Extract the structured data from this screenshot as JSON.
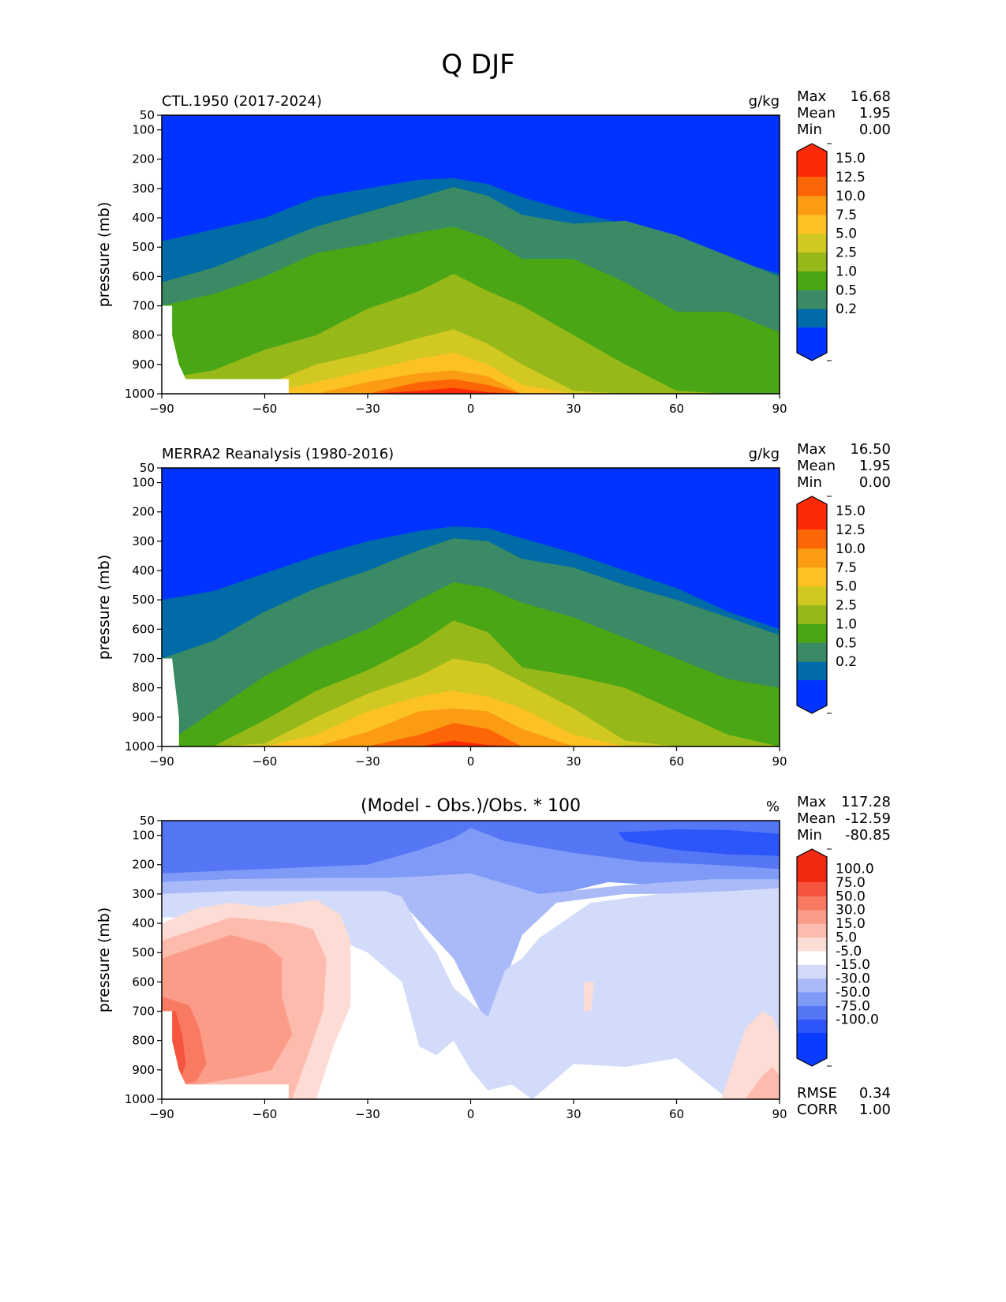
{
  "figure_title": "Q DJF",
  "chart_data": [
    {
      "type": "heatmap",
      "title": "CTL.1950 (2017-2024)",
      "units": "g/kg",
      "xlabel": "",
      "ylabel": "pressure (mb)",
      "xlim": [
        -90,
        90
      ],
      "ylim": [
        1000,
        50
      ],
      "xticks": [
        "−90",
        "−60",
        "−30",
        "0",
        "30",
        "60",
        "90"
      ],
      "yticks": [
        "50",
        "100",
        "200",
        "300",
        "400",
        "500",
        "600",
        "700",
        "800",
        "900",
        "1000"
      ],
      "stats": [
        {
          "label": "Max",
          "value": "16.68"
        },
        {
          "label": "Mean",
          "value": "1.95"
        },
        {
          "label": "Min",
          "value": "0.00"
        }
      ],
      "levels": [
        0.2,
        0.5,
        1.0,
        2.5,
        5.0,
        7.5,
        10.0,
        12.5,
        15.0
      ],
      "colorbar_ticks": [
        "0.2",
        "0.5",
        "1.0",
        "2.5",
        "5.0",
        "7.5",
        "10.0",
        "12.5",
        "15.0"
      ],
      "colors": [
        "#0033ff",
        "#006ba6",
        "#3a8a66",
        "#4aa614",
        "#96b818",
        "#d2c822",
        "#fcc224",
        "#fc9c12",
        "#fc6606",
        "#fc2a06"
      ],
      "boundary_lat": [
        -90,
        -75,
        -60,
        -45,
        -30,
        -15,
        -5,
        5,
        15,
        30,
        45,
        60,
        75,
        90
      ],
      "boundary_pressure": [
        [
          480,
          440,
          400,
          330,
          300,
          270,
          265,
          285,
          330,
          380,
          420,
          480,
          540,
          590
        ],
        [
          620,
          570,
          500,
          430,
          380,
          330,
          295,
          325,
          390,
          420,
          410,
          460,
          530,
          600
        ],
        [
          700,
          660,
          600,
          520,
          490,
          450,
          430,
          470,
          540,
          540,
          620,
          720,
          720,
          790
        ],
        [
          950,
          920,
          850,
          800,
          710,
          650,
          590,
          650,
          700,
          800,
          900,
          990,
          1000,
          1000
        ],
        [
          1000,
          1000,
          970,
          900,
          860,
          810,
          780,
          830,
          900,
          990,
          1000,
          1000,
          1000,
          1000
        ],
        [
          1000,
          1000,
          1000,
          960,
          920,
          880,
          860,
          900,
          970,
          1000,
          1000,
          1000,
          1000,
          1000
        ],
        [
          1000,
          1000,
          1000,
          1000,
          960,
          930,
          920,
          940,
          1000,
          1000,
          1000,
          1000,
          1000,
          1000
        ],
        [
          1000,
          1000,
          1000,
          1000,
          1000,
          960,
          950,
          970,
          1000,
          1000,
          1000,
          1000,
          1000,
          1000
        ],
        [
          1000,
          1000,
          1000,
          1000,
          1000,
          990,
          980,
          995,
          1000,
          1000,
          1000,
          1000,
          1000,
          1000
        ]
      ],
      "missing_regions": [
        {
          "lat": [
            -90,
            -87,
            -87,
            -85,
            -83,
            -53,
            -53,
            -90
          ],
          "pressure": [
            700,
            700,
            800,
            900,
            950,
            950,
            1000,
            1000
          ]
        }
      ]
    },
    {
      "type": "heatmap",
      "title": "MERRA2 Reanalysis (1980-2016)",
      "units": "g/kg",
      "xlabel": "",
      "ylabel": "pressure (mb)",
      "xlim": [
        -90,
        90
      ],
      "ylim": [
        1000,
        50
      ],
      "xticks": [
        "−90",
        "−60",
        "−30",
        "0",
        "30",
        "60",
        "90"
      ],
      "yticks": [
        "50",
        "100",
        "200",
        "300",
        "400",
        "500",
        "600",
        "700",
        "800",
        "900",
        "1000"
      ],
      "stats": [
        {
          "label": "Max",
          "value": "16.50"
        },
        {
          "label": "Mean",
          "value": "1.95"
        },
        {
          "label": "Min",
          "value": "0.00"
        }
      ],
      "levels": [
        0.2,
        0.5,
        1.0,
        2.5,
        5.0,
        7.5,
        10.0,
        12.5,
        15.0
      ],
      "colorbar_ticks": [
        "0.2",
        "0.5",
        "1.0",
        "2.5",
        "5.0",
        "7.5",
        "10.0",
        "12.5",
        "15.0"
      ],
      "colors": [
        "#0033ff",
        "#006ba6",
        "#3a8a66",
        "#4aa614",
        "#96b818",
        "#d2c822",
        "#fcc224",
        "#fc9c12",
        "#fc6606",
        "#fc2a06"
      ],
      "boundary_lat": [
        -90,
        -75,
        -60,
        -45,
        -30,
        -15,
        -5,
        5,
        15,
        30,
        45,
        60,
        75,
        90
      ],
      "boundary_pressure": [
        [
          500,
          470,
          410,
          350,
          300,
          265,
          250,
          255,
          290,
          340,
          400,
          460,
          540,
          600
        ],
        [
          700,
          640,
          540,
          460,
          400,
          330,
          290,
          300,
          360,
          390,
          450,
          500,
          560,
          620
        ],
        [
          1000,
          880,
          760,
          670,
          600,
          500,
          440,
          460,
          510,
          560,
          630,
          700,
          770,
          800
        ],
        [
          1000,
          1000,
          910,
          810,
          740,
          650,
          570,
          610,
          730,
          760,
          800,
          880,
          960,
          1000
        ],
        [
          1000,
          1000,
          990,
          900,
          820,
          760,
          700,
          720,
          780,
          870,
          980,
          1000,
          1000,
          1000
        ],
        [
          1000,
          1000,
          1000,
          960,
          880,
          830,
          810,
          830,
          870,
          960,
          1000,
          1000,
          1000,
          1000
        ],
        [
          1000,
          1000,
          1000,
          1000,
          950,
          880,
          870,
          880,
          940,
          1000,
          1000,
          1000,
          1000,
          1000
        ],
        [
          1000,
          1000,
          1000,
          1000,
          1000,
          960,
          920,
          940,
          1000,
          1000,
          1000,
          1000,
          1000,
          1000
        ],
        [
          1000,
          1000,
          1000,
          1000,
          1000,
          1000,
          980,
          995,
          1000,
          1000,
          1000,
          1000,
          1000,
          1000
        ]
      ],
      "missing_regions": [
        {
          "lat": [
            -90,
            -87,
            -86,
            -85,
            -85,
            -90
          ],
          "pressure": [
            700,
            700,
            800,
            900,
            1000,
            1000
          ]
        }
      ]
    },
    {
      "type": "heatmap",
      "title": "(Model - Obs.)/Obs. * 100",
      "units": "%",
      "xlabel": "",
      "ylabel": "pressure (mb)",
      "xlim": [
        -90,
        90
      ],
      "ylim": [
        1000,
        50
      ],
      "xticks": [
        "−90",
        "−60",
        "−30",
        "0",
        "30",
        "60",
        "90"
      ],
      "yticks": [
        "50",
        "100",
        "200",
        "300",
        "400",
        "500",
        "600",
        "700",
        "800",
        "900",
        "1000"
      ],
      "stats": [
        {
          "label": "Max",
          "value": "117.28"
        },
        {
          "label": "Mean",
          "value": "-12.59"
        },
        {
          "label": "Min",
          "value": "-80.85"
        }
      ],
      "footer_stats": [
        {
          "label": "RMSE",
          "value": "0.34"
        },
        {
          "label": "CORR",
          "value": "1.00"
        }
      ],
      "levels": [
        -100,
        -75,
        -50,
        -30,
        -15,
        -5,
        5,
        15,
        30,
        50,
        75,
        100
      ],
      "colorbar_ticks": [
        "-100.0",
        "-75.0",
        "-50.0",
        "-30.0",
        "-15.0",
        "-5.0",
        "5.0",
        "15.0",
        "30.0",
        "50.0",
        "75.0",
        "100.0"
      ],
      "colors": [
        "#0a3cff",
        "#2c55fa",
        "#5577f5",
        "#7f9bf7",
        "#aab9f8",
        "#d2dbfa",
        "#ffffff",
        "#fddcd6",
        "#fdbbae",
        "#fb9c88",
        "#f97a62",
        "#f5553f",
        "#f02a10"
      ],
      "background_level_index": 6,
      "regions": [
        {
          "level_index": 2,
          "lat": [
            -90,
            90,
            90,
            -90
          ],
          "pressure": [
            50,
            50,
            230,
            230
          ]
        },
        {
          "level_index": 3,
          "lat": [
            -90,
            -60,
            -30,
            -15,
            -5,
            0,
            10,
            30,
            50,
            70,
            90,
            90,
            70,
            40,
            15,
            5,
            -5,
            -20,
            -45,
            -70,
            -90
          ],
          "pressure": [
            230,
            215,
            200,
            150,
            110,
            75,
            120,
            160,
            190,
            200,
            215,
            290,
            280,
            260,
            330,
            480,
            370,
            250,
            250,
            250,
            260
          ]
        },
        {
          "level_index": 1,
          "lat": [
            43,
            60,
            75,
            90,
            90,
            75,
            60,
            45
          ],
          "pressure": [
            90,
            80,
            82,
            95,
            170,
            165,
            150,
            120
          ]
        },
        {
          "level_index": 4,
          "lat": [
            -90,
            -70,
            -45,
            -25,
            -15,
            0,
            20,
            45,
            70,
            90,
            90,
            70,
            45,
            25,
            15,
            5,
            -5,
            -20,
            -45,
            -70,
            -90
          ],
          "pressure": [
            260,
            250,
            245,
            245,
            240,
            230,
            300,
            270,
            250,
            250,
            300,
            300,
            300,
            330,
            440,
            750,
            520,
            330,
            300,
            290,
            330
          ]
        },
        {
          "level_index": 5,
          "lat": [
            -90,
            -70,
            -45,
            -25,
            -20,
            -15,
            -10,
            -5,
            5,
            10,
            15,
            20,
            35,
            55,
            75,
            90,
            90,
            75,
            60,
            45,
            30,
            18,
            12,
            5,
            0,
            -5,
            -10,
            -15,
            -20,
            -30,
            -45,
            -70,
            -90
          ],
          "pressure": [
            300,
            290,
            290,
            290,
            310,
            420,
            500,
            620,
            720,
            560,
            520,
            450,
            330,
            300,
            290,
            280,
            1000,
            1000,
            860,
            890,
            880,
            1000,
            950,
            970,
            900,
            800,
            850,
            820,
            600,
            500,
            420,
            380,
            380
          ]
        },
        {
          "level_index": 7,
          "lat": [
            -90,
            -80,
            -70,
            -60,
            -45,
            -38,
            -35,
            -35,
            -40,
            -45,
            -55,
            -70,
            -90
          ],
          "pressure": [
            400,
            350,
            330,
            345,
            320,
            370,
            460,
            680,
            820,
            1000,
            1000,
            1000,
            1000
          ]
        },
        {
          "level_index": 8,
          "lat": [
            -90,
            -80,
            -70,
            -60,
            -52,
            -46,
            -42,
            -43,
            -48,
            -52,
            -55,
            -75,
            -90
          ],
          "pressure": [
            460,
            420,
            380,
            390,
            400,
            420,
            520,
            700,
            870,
            1000,
            1000,
            1000,
            1000
          ]
        },
        {
          "level_index": 9,
          "lat": [
            -90,
            -80,
            -70,
            -60,
            -55,
            -55,
            -52,
            -58,
            -65,
            -80,
            -90
          ],
          "pressure": [
            520,
            480,
            440,
            470,
            520,
            650,
            780,
            900,
            920,
            950,
            950
          ]
        },
        {
          "level_index": 10,
          "lat": [
            -90,
            -82,
            -79,
            -77,
            -80,
            -85,
            -90
          ],
          "pressure": [
            650,
            680,
            760,
            880,
            940,
            950,
            950
          ]
        },
        {
          "level_index": 11,
          "lat": [
            -90,
            -86,
            -84,
            -83,
            -85,
            -87,
            -90
          ],
          "pressure": [
            700,
            700,
            780,
            880,
            950,
            950,
            950
          ]
        },
        {
          "level_index": 7,
          "lat": [
            73,
            80,
            85,
            88,
            90,
            90,
            73
          ],
          "pressure": [
            1000,
            760,
            700,
            720,
            780,
            1000,
            1000
          ]
        },
        {
          "level_index": 8,
          "lat": [
            80,
            85,
            88,
            90,
            90,
            78
          ],
          "pressure": [
            1000,
            920,
            890,
            920,
            1000,
            1000
          ]
        },
        {
          "level_index": 7,
          "lat": [
            33,
            36,
            35,
            33
          ],
          "pressure": [
            600,
            600,
            700,
            700
          ]
        }
      ],
      "missing_regions": [
        {
          "lat": [
            -90,
            -87,
            -87,
            -85,
            -83,
            -53,
            -53,
            -90
          ],
          "pressure": [
            700,
            700,
            800,
            900,
            950,
            950,
            1000,
            1000
          ]
        }
      ]
    }
  ]
}
